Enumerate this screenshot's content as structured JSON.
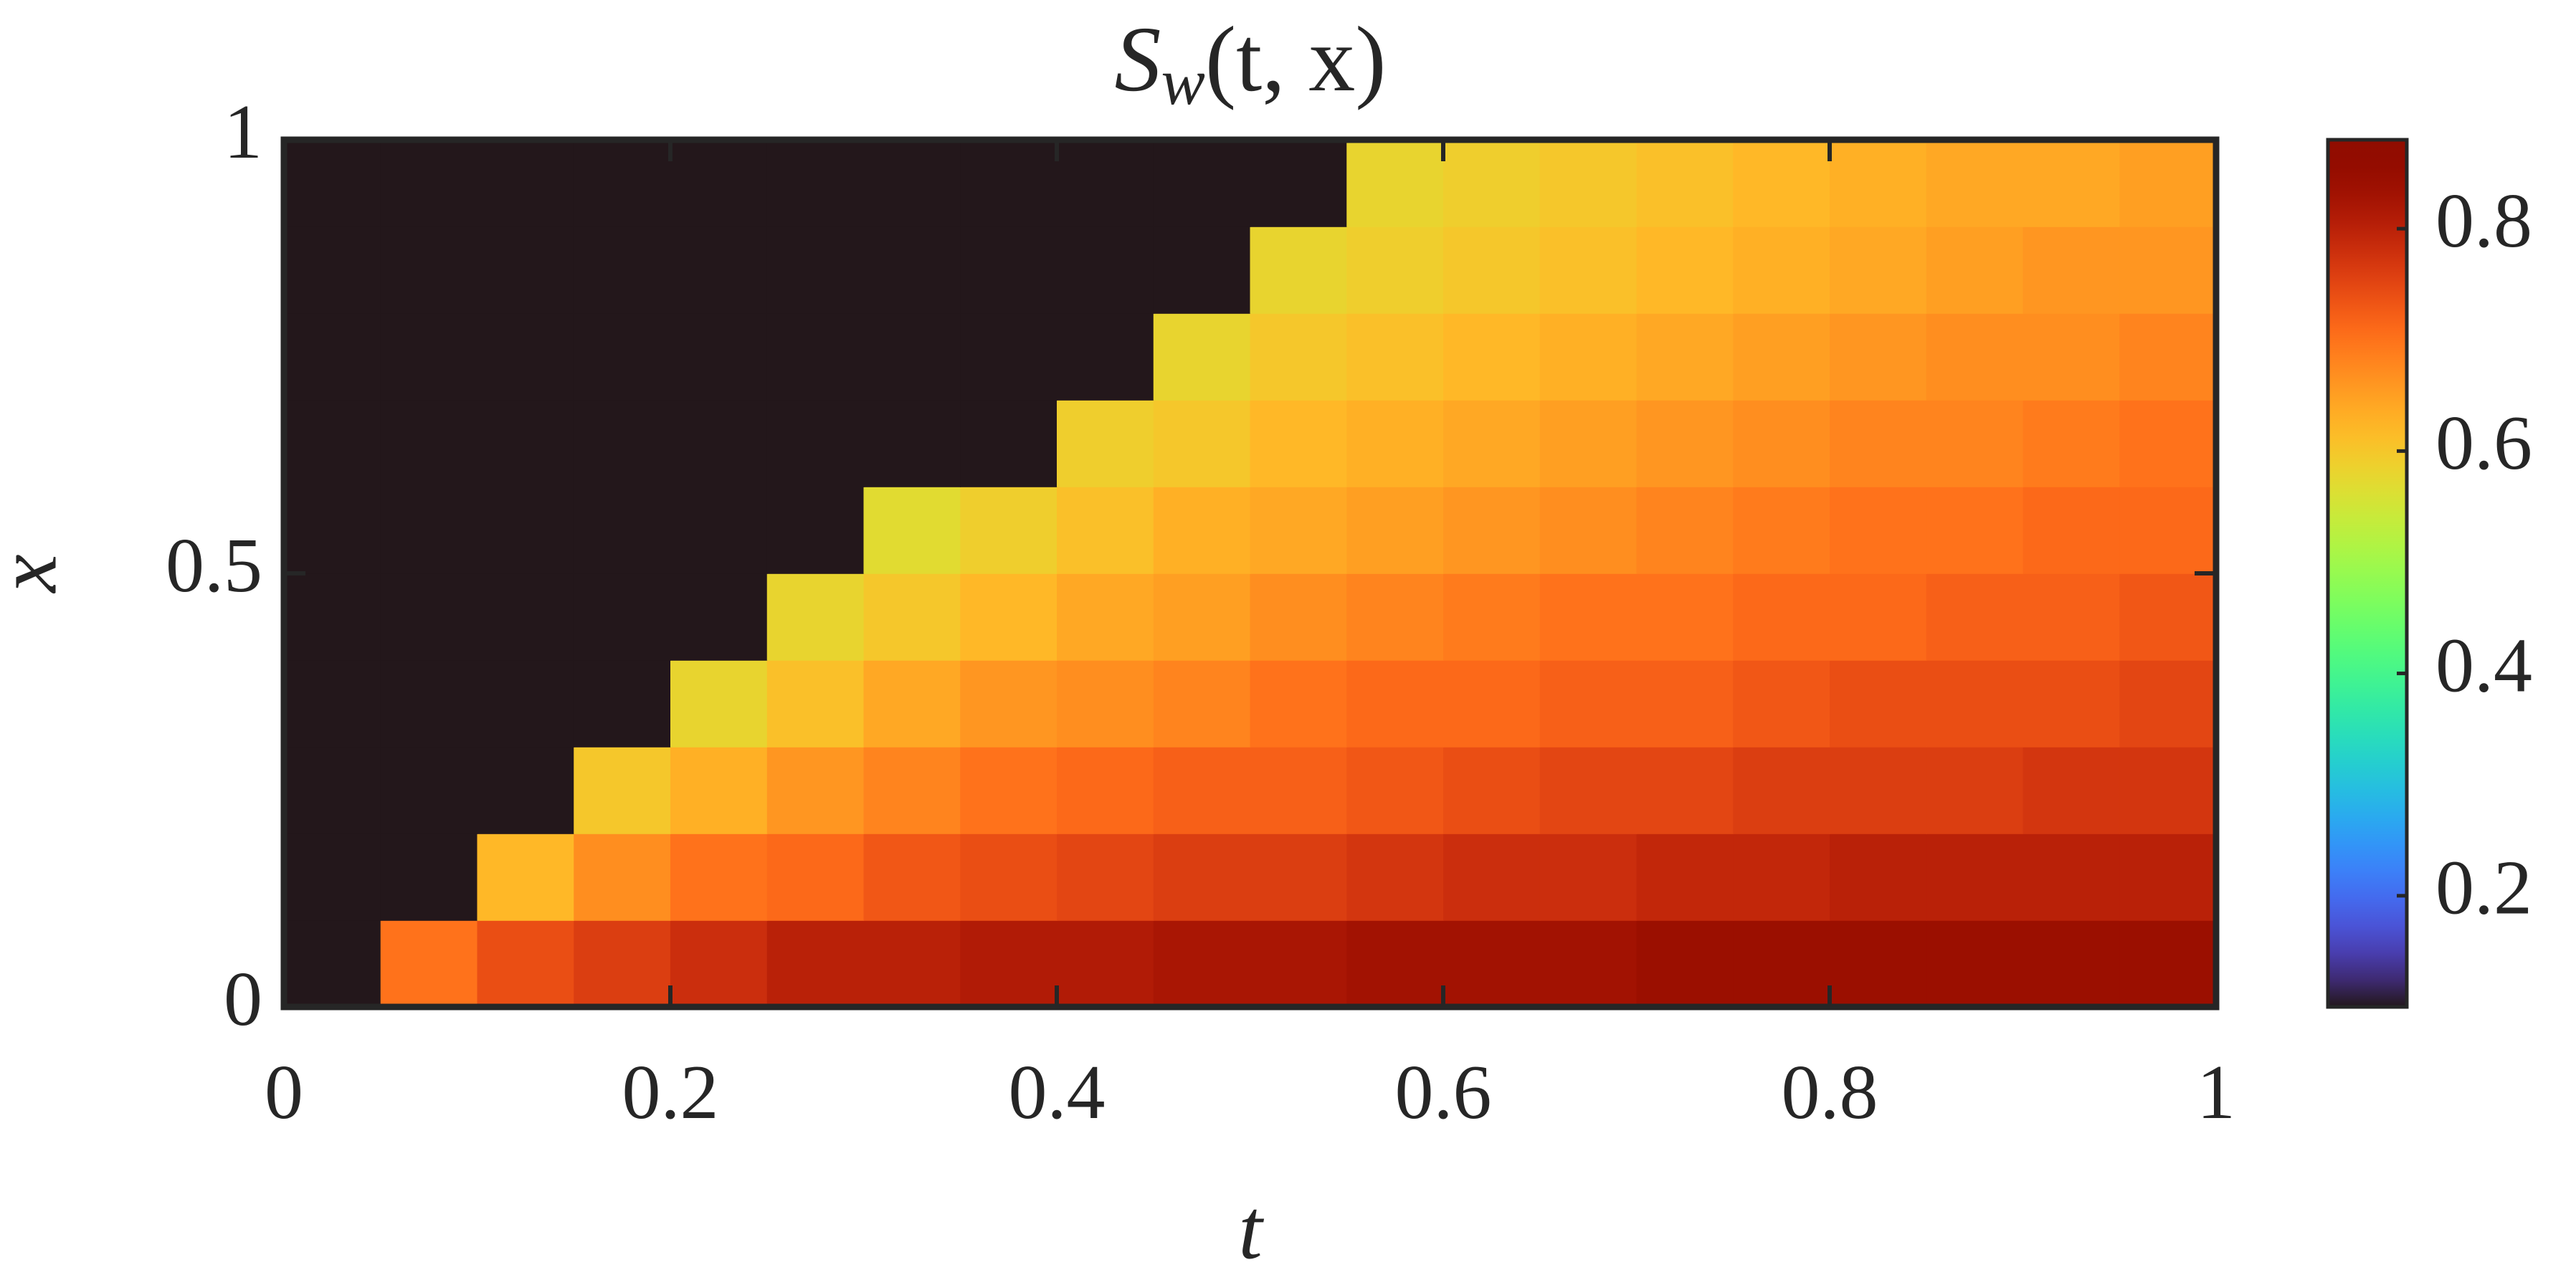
{
  "chart_data": {
    "type": "heatmap",
    "title": [
      "S",
      "w",
      "(t, x)"
    ],
    "x_label": "t",
    "y_label": "x",
    "colormap": "turbo",
    "clim": [
      0.1,
      0.88
    ],
    "cticks": [
      0.2,
      0.4,
      0.6,
      0.8
    ],
    "xlim": [
      0,
      1
    ],
    "xticks": [
      0,
      0.2,
      0.4,
      0.6,
      0.8,
      1
    ],
    "ylim": [
      0,
      1
    ],
    "yticks": [
      0,
      0.5,
      1
    ],
    "x": [
      0.025,
      0.075,
      0.125,
      0.175,
      0.225,
      0.275,
      0.325,
      0.375,
      0.425,
      0.475,
      0.525,
      0.575,
      0.625,
      0.675,
      0.725,
      0.775,
      0.825,
      0.875,
      0.925,
      0.975
    ],
    "y": [
      0.05,
      0.15,
      0.25,
      0.35,
      0.45,
      0.55,
      0.65,
      0.75,
      0.85,
      0.95
    ],
    "z": [
      [
        0.1,
        0.7,
        0.74,
        0.76,
        0.78,
        0.8,
        0.8,
        0.81,
        0.81,
        0.82,
        0.82,
        0.83,
        0.83,
        0.83,
        0.84,
        0.84,
        0.84,
        0.84,
        0.84,
        0.84
      ],
      [
        0.1,
        0.1,
        0.62,
        0.67,
        0.7,
        0.71,
        0.73,
        0.74,
        0.75,
        0.76,
        0.76,
        0.77,
        0.78,
        0.78,
        0.79,
        0.79,
        0.8,
        0.8,
        0.8,
        0.8
      ],
      [
        0.1,
        0.1,
        0.1,
        0.6,
        0.63,
        0.66,
        0.68,
        0.7,
        0.71,
        0.72,
        0.72,
        0.73,
        0.74,
        0.75,
        0.75,
        0.76,
        0.76,
        0.76,
        0.77,
        0.77
      ],
      [
        0.1,
        0.1,
        0.1,
        0.1,
        0.58,
        0.61,
        0.64,
        0.66,
        0.67,
        0.68,
        0.7,
        0.71,
        0.71,
        0.72,
        0.72,
        0.73,
        0.74,
        0.74,
        0.74,
        0.75
      ],
      [
        0.1,
        0.1,
        0.1,
        0.1,
        0.1,
        0.58,
        0.6,
        0.62,
        0.64,
        0.65,
        0.67,
        0.68,
        0.69,
        0.7,
        0.7,
        0.71,
        0.71,
        0.72,
        0.72,
        0.73
      ],
      [
        0.1,
        0.1,
        0.1,
        0.1,
        0.1,
        0.1,
        0.57,
        0.59,
        0.61,
        0.63,
        0.64,
        0.65,
        0.66,
        0.67,
        0.68,
        0.69,
        0.7,
        0.7,
        0.71,
        0.71
      ],
      [
        0.1,
        0.1,
        0.1,
        0.1,
        0.1,
        0.1,
        0.1,
        0.1,
        0.59,
        0.6,
        0.62,
        0.63,
        0.64,
        0.65,
        0.66,
        0.67,
        0.68,
        0.68,
        0.69,
        0.7
      ],
      [
        0.1,
        0.1,
        0.1,
        0.1,
        0.1,
        0.1,
        0.1,
        0.1,
        0.1,
        0.58,
        0.6,
        0.61,
        0.62,
        0.63,
        0.64,
        0.65,
        0.66,
        0.67,
        0.67,
        0.68
      ],
      [
        0.1,
        0.1,
        0.1,
        0.1,
        0.1,
        0.1,
        0.1,
        0.1,
        0.1,
        0.1,
        0.58,
        0.59,
        0.6,
        0.61,
        0.62,
        0.63,
        0.64,
        0.65,
        0.66,
        0.66
      ],
      [
        0.1,
        0.1,
        0.1,
        0.1,
        0.1,
        0.1,
        0.1,
        0.1,
        0.1,
        0.1,
        0.1,
        0.58,
        0.59,
        0.6,
        0.61,
        0.62,
        0.63,
        0.64,
        0.64,
        0.65
      ]
    ]
  }
}
